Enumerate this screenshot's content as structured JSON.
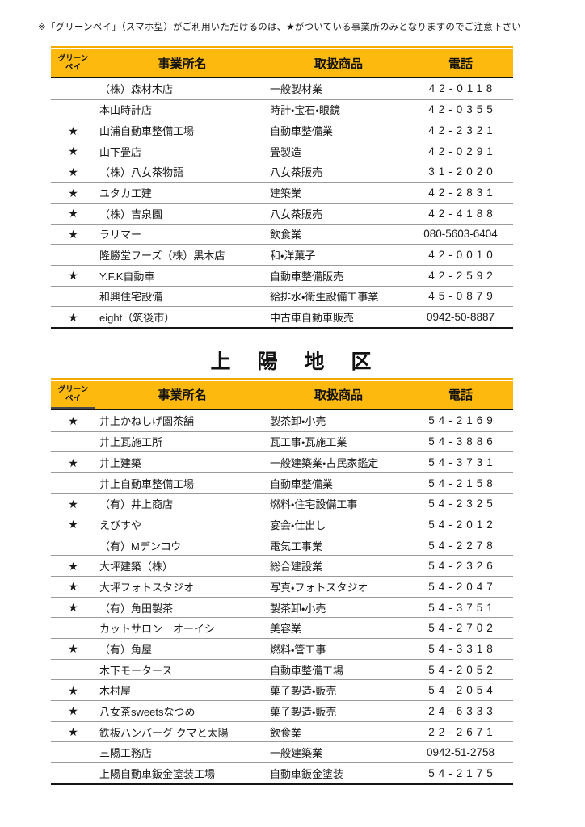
{
  "note": "※「グリーンペイ」（スマホ型）がご利用いただけるのは、★がついている事業所のみとなりますのでご注意下さい",
  "star_glyph": "★",
  "colors": {
    "header_bg": "#FDB90D",
    "header_top_rule": "#F2AB00",
    "heavy_border": "#151515",
    "row_separator": "#9B9B9B"
  },
  "header": {
    "greenpay_line1": "グリーン",
    "greenpay_line2": "ペイ",
    "name": "事業所名",
    "product": "取扱商品",
    "phone": "電話"
  },
  "section2_title": "上　陽　地　区",
  "tables": [
    {
      "id": "table1",
      "rows": [
        {
          "star": false,
          "name": "（株）森材木店",
          "product": "一般製材業",
          "phone": "42-0118",
          "phone_wide": true
        },
        {
          "star": false,
          "name": "本山時計店",
          "product": "時計・宝石・眼鏡",
          "phone": "42-0355",
          "phone_wide": true
        },
        {
          "star": true,
          "name": "山浦自動車整備工場",
          "product": "自動車整備業",
          "phone": "42-2321",
          "phone_wide": true
        },
        {
          "star": true,
          "name": "山下畳店",
          "product": "畳製造",
          "phone": "42-0291",
          "phone_wide": true
        },
        {
          "star": true,
          "name": "（株）八女茶物語",
          "product": "八女茶販売",
          "phone": "31-2020",
          "phone_wide": true
        },
        {
          "star": true,
          "name": "ユタカ工建",
          "product": "建築業",
          "phone": "42-2831",
          "phone_wide": true
        },
        {
          "star": true,
          "name": "（株）吉泉園",
          "product": "八女茶販売",
          "phone": "42-4188",
          "phone_wide": true
        },
        {
          "star": true,
          "name": "ラリマー",
          "product": "飲食業",
          "phone": "080-5603-6404",
          "phone_wide": false
        },
        {
          "star": false,
          "name": "隆勝堂フーズ（株）黒木店",
          "product": "和・洋菓子",
          "phone": "42-0010",
          "phone_wide": true
        },
        {
          "star": true,
          "name": "Y.F.K自動車",
          "product": "自動車整備販売",
          "phone": "42-2592",
          "phone_wide": true
        },
        {
          "star": false,
          "name": "和興住宅設備",
          "product": "給排水・衛生設備工事業",
          "phone": "45-0879",
          "phone_wide": true
        },
        {
          "star": true,
          "name": "eight（筑後市）",
          "product": "中古車自動車販売",
          "phone": "0942-50-8887",
          "phone_wide": false
        }
      ]
    },
    {
      "id": "table2",
      "rows": [
        {
          "star": true,
          "name": "井上かねしげ園茶舗",
          "product": "製茶卸・小売",
          "phone": "54-2169",
          "phone_wide": true
        },
        {
          "star": false,
          "name": "井上瓦施工所",
          "product": "瓦工事・瓦施工業",
          "phone": "54-3886",
          "phone_wide": true
        },
        {
          "star": true,
          "name": "井上建築",
          "product": "一般建築業・古民家鑑定",
          "phone": "54-3731",
          "phone_wide": true
        },
        {
          "star": false,
          "name": "井上自動車整備工場",
          "product": "自動車整備業",
          "phone": "54-2158",
          "phone_wide": true
        },
        {
          "star": true,
          "name": "（有）井上商店",
          "product": "燃料・住宅設備工事",
          "phone": "54-2325",
          "phone_wide": true
        },
        {
          "star": true,
          "name": "えびすや",
          "product": "宴会・仕出し",
          "phone": "54-2012",
          "phone_wide": true
        },
        {
          "star": false,
          "name": "（有）Mデンコウ",
          "product": "電気工事業",
          "phone": "54-2278",
          "phone_wide": true
        },
        {
          "star": true,
          "name": "大坪建築（株）",
          "product": "総合建設業",
          "phone": "54-2326",
          "phone_wide": true
        },
        {
          "star": true,
          "name": "大坪フォトスタジオ",
          "product": "写真・フォトスタジオ",
          "phone": "54-2047",
          "phone_wide": true
        },
        {
          "star": true,
          "name": "（有）角田製茶",
          "product": "製茶卸・小売",
          "phone": "54-3751",
          "phone_wide": true
        },
        {
          "star": false,
          "name": "カットサロン　オーイシ",
          "product": "美容業",
          "phone": "54-2702",
          "phone_wide": true
        },
        {
          "star": true,
          "name": "（有）角屋",
          "product": "燃料・管工事",
          "phone": "54-3318",
          "phone_wide": true
        },
        {
          "star": false,
          "name": "木下モータース",
          "product": "自動車整備工場",
          "phone": "54-2052",
          "phone_wide": true
        },
        {
          "star": true,
          "name": "木村屋",
          "product": "菓子製造・販売",
          "phone": "54-2054",
          "phone_wide": true
        },
        {
          "star": true,
          "name": "八女茶sweetsなつめ",
          "product": "菓子製造・販売",
          "phone": "24-6333",
          "phone_wide": true
        },
        {
          "star": true,
          "name": "鉄板ハンバーグ クマと太陽",
          "product": "飲食業",
          "phone": "22-2671",
          "phone_wide": true
        },
        {
          "star": false,
          "name": "三陽工務店",
          "product": "一般建築業",
          "phone": "0942-51-2758",
          "phone_wide": false
        },
        {
          "star": false,
          "name": "上陽自動車鈑金塗装工場",
          "product": "自動車鈑金塗装",
          "phone": "54-2175",
          "phone_wide": true
        }
      ]
    }
  ]
}
